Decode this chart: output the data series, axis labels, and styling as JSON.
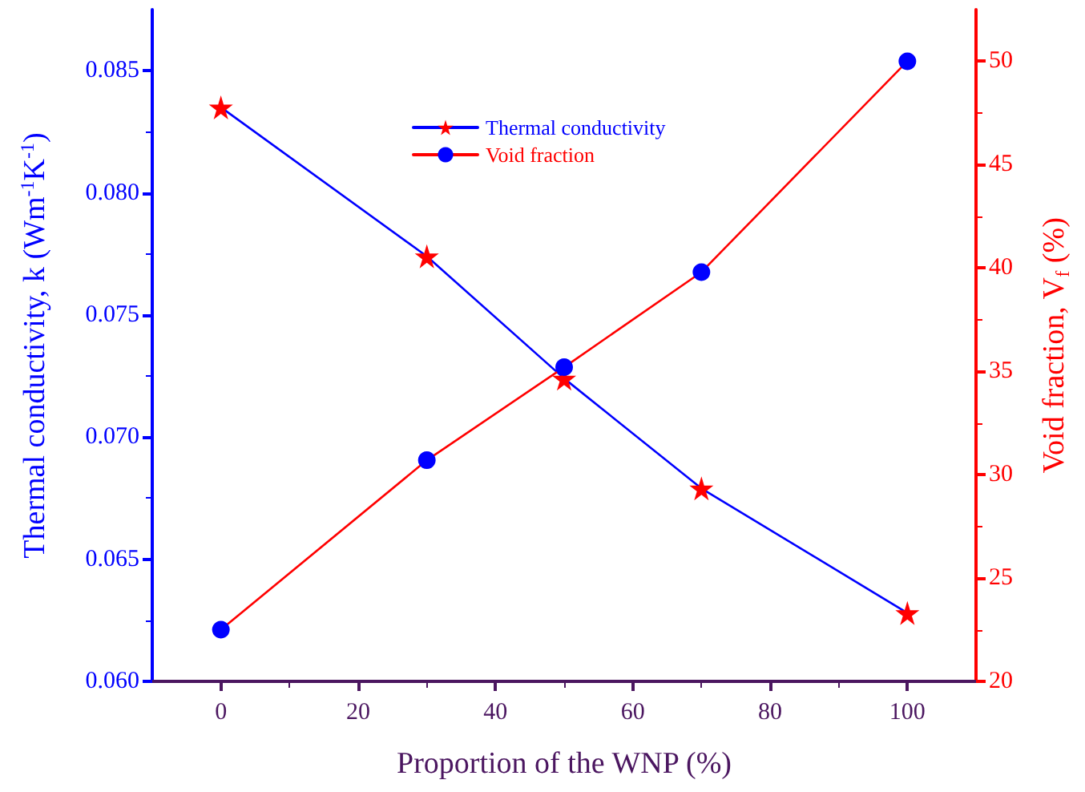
{
  "chart_data": {
    "type": "line",
    "x": [
      0,
      30,
      50,
      70,
      100
    ],
    "xlabel": "Proportion of the WNP (%)",
    "ylabel": "Thermal conductivity, k (Wm$^{-1}$K$^{-1}$)",
    "y2label": "Void fraction, V$_{f}$ (%)",
    "xlim": [
      -10,
      110
    ],
    "xticks": [
      0,
      20,
      40,
      60,
      80,
      100
    ],
    "ylim": [
      0.06,
      0.0875
    ],
    "yticks": [
      {
        "value": 0.06,
        "label": "0.060"
      },
      {
        "value": 0.065,
        "label": "0.065"
      },
      {
        "value": 0.07,
        "label": "0.070"
      },
      {
        "value": 0.075,
        "label": "0.075"
      },
      {
        "value": 0.08,
        "label": "0.080"
      },
      {
        "value": 0.085,
        "label": "0.085"
      }
    ],
    "y2lim": [
      20,
      52.5
    ],
    "y2ticks": [
      20,
      25,
      30,
      35,
      40,
      45,
      50
    ],
    "series": [
      {
        "name": "Thermal conductivity",
        "color": "#0000ff",
        "colors": [
          "#ff0000",
          "#ff0000",
          "#ff0000",
          "#ff0000",
          "#ff0000"
        ],
        "marker": "star",
        "values": [
          0.0835,
          0.0774,
          0.0724,
          0.0679,
          0.0628
        ]
      },
      {
        "name": "Void fraction",
        "axis": "y2",
        "color": "#ff0000",
        "colors": [
          "#0000ff",
          "#0000ff",
          "#0000ff",
          "#0000ff",
          "#0000ff"
        ],
        "marker": "circle",
        "values": [
          22.5,
          30.7,
          35.2,
          39.8,
          50.0
        ]
      }
    ],
    "legend": "top",
    "grid": false,
    "line_style": "solid"
  }
}
